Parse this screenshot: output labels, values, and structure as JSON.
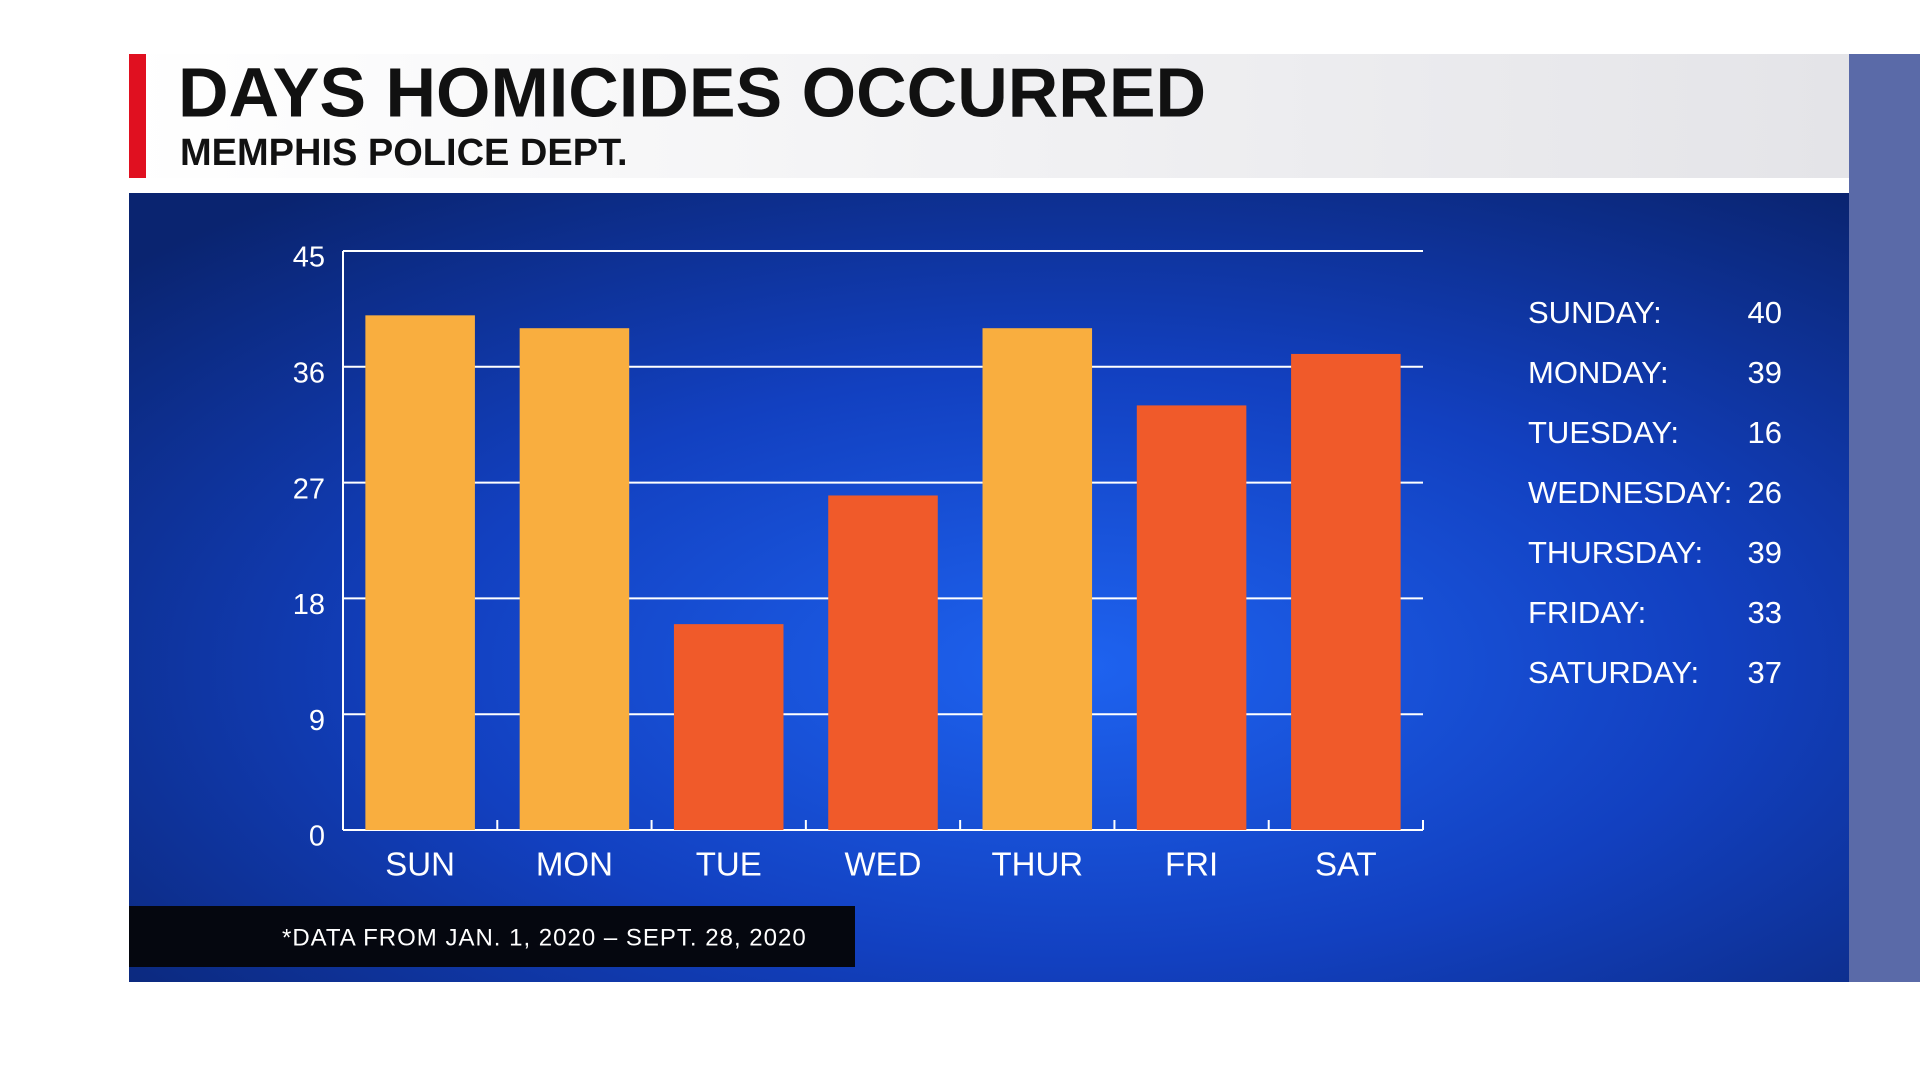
{
  "chart_data": {
    "type": "bar",
    "title": "DAYS HOMICIDES OCCURRED",
    "subtitle": "MEMPHIS POLICE DEPT.",
    "categories": [
      "SUN",
      "MON",
      "TUE",
      "WED",
      "THUR",
      "FRI",
      "SAT"
    ],
    "values": [
      40,
      39,
      16,
      26,
      39,
      33,
      37
    ],
    "colors": [
      "#f9ae3f",
      "#f9ae3f",
      "#f05a2a",
      "#f05a2a",
      "#f9ae3f",
      "#f05a2a",
      "#f05a2a"
    ],
    "ylim": [
      0,
      45
    ],
    "yticks": [
      0,
      9,
      18,
      27,
      36,
      45
    ],
    "grid": true,
    "day_labels": [
      "SUNDAY:",
      "MONDAY:",
      "TUESDAY:",
      "WEDNESDAY:",
      "THURSDAY:",
      "FRIDAY:",
      "SATURDAY:"
    ],
    "footnote": "*DATA FROM JAN. 1, 2020 – SEPT. 28, 2020"
  }
}
